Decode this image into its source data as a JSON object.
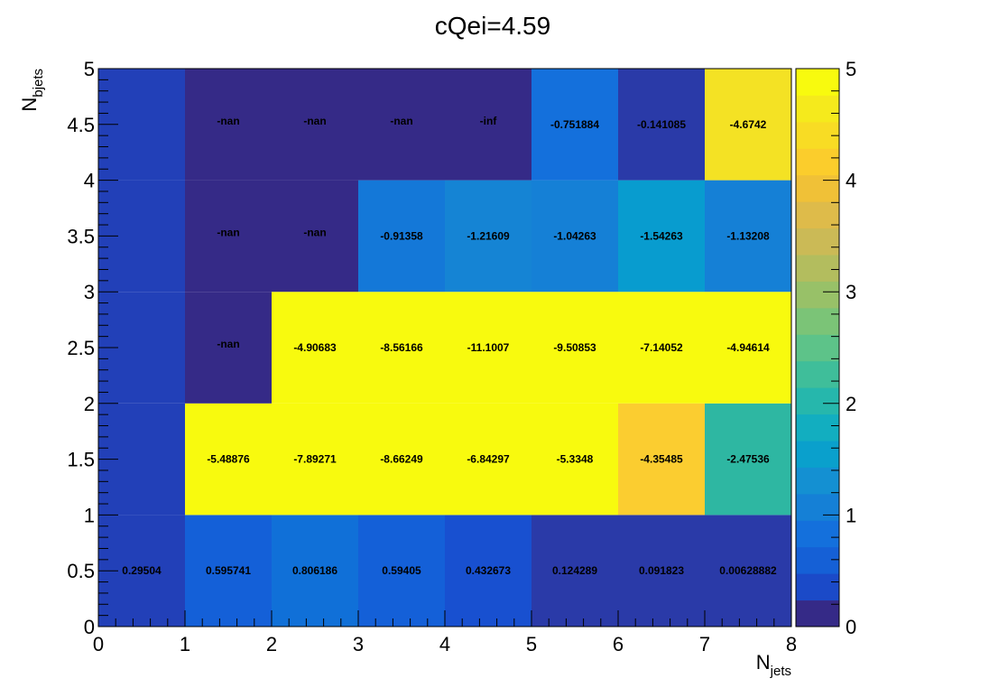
{
  "chart_data": {
    "type": "heatmap",
    "title": "cQei=4.59",
    "xlabel": {
      "main": "N",
      "sub": "jets"
    },
    "ylabel": {
      "main": "N",
      "sub": "bjets"
    },
    "xlim": [
      0,
      8
    ],
    "ylim": [
      0,
      5
    ],
    "x_ticks": [
      "0",
      "1",
      "2",
      "3",
      "4",
      "5",
      "6",
      "7",
      "8"
    ],
    "y_ticks": [
      "0",
      "0.5",
      "1",
      "1.5",
      "2",
      "2.5",
      "3",
      "3.5",
      "4",
      "4.5",
      "5"
    ],
    "x_bins": [
      [
        0,
        1
      ],
      [
        1,
        2
      ],
      [
        2,
        3
      ],
      [
        3,
        4
      ],
      [
        4,
        5
      ],
      [
        5,
        6
      ],
      [
        6,
        7
      ],
      [
        7,
        8
      ]
    ],
    "y_bins": [
      [
        0,
        1
      ],
      [
        1,
        2
      ],
      [
        2,
        3
      ],
      [
        3,
        4
      ],
      [
        4,
        5
      ]
    ],
    "color_scale": {
      "min": 0,
      "max": 5,
      "ticks": [
        "0",
        "1",
        "2",
        "3",
        "4",
        "5"
      ],
      "palette": "viridis-like"
    },
    "cells": [
      {
        "x": 0,
        "y": 0,
        "label": "0.29504",
        "value": 0.29504,
        "color": "#2240b8"
      },
      {
        "x": 1,
        "y": 0,
        "label": "0.595741",
        "value": 0.595741,
        "color": "#1460d8"
      },
      {
        "x": 2,
        "y": 0,
        "label": "0.806186",
        "value": 0.806186,
        "color": "#1070d8"
      },
      {
        "x": 3,
        "y": 0,
        "label": "0.59405",
        "value": 0.59405,
        "color": "#1460d8"
      },
      {
        "x": 4,
        "y": 0,
        "label": "0.432673",
        "value": 0.432673,
        "color": "#1850d0"
      },
      {
        "x": 5,
        "y": 0,
        "label": "0.124289",
        "value": 0.124289,
        "color": "#2a3aa8"
      },
      {
        "x": 6,
        "y": 0,
        "label": "0.091823",
        "value": 0.091823,
        "color": "#2a3aa8"
      },
      {
        "x": 7,
        "y": 0,
        "label": "0.00628882",
        "value": 0.00628882,
        "color": "#2a3aa8"
      },
      {
        "x": 0,
        "y": 1,
        "label": "",
        "value": 0.2,
        "color": "#2240b8"
      },
      {
        "x": 1,
        "y": 1,
        "label": "-5.48876",
        "value": -5.48876,
        "color": "#f8fa0e"
      },
      {
        "x": 2,
        "y": 1,
        "label": "-7.89271",
        "value": -7.89271,
        "color": "#f8fa0e"
      },
      {
        "x": 3,
        "y": 1,
        "label": "-8.66249",
        "value": -8.66249,
        "color": "#f8fa0e"
      },
      {
        "x": 4,
        "y": 1,
        "label": "-6.84297",
        "value": -6.84297,
        "color": "#f8fa0e"
      },
      {
        "x": 5,
        "y": 1,
        "label": "-5.3348",
        "value": -5.3348,
        "color": "#f8fa0e"
      },
      {
        "x": 6,
        "y": 1,
        "label": "-4.35485",
        "value": -4.35485,
        "color": "#fbcd30"
      },
      {
        "x": 7,
        "y": 1,
        "label": "-2.47536",
        "value": -2.47536,
        "color": "#2eb7a2"
      },
      {
        "x": 0,
        "y": 2,
        "label": "",
        "value": 0.2,
        "color": "#2240b8"
      },
      {
        "x": 1,
        "y": 2,
        "label": "-nan",
        "value": null,
        "color": "#352a87"
      },
      {
        "x": 2,
        "y": 2,
        "label": "-4.90683",
        "value": -4.90683,
        "color": "#f8fa0e"
      },
      {
        "x": 3,
        "y": 2,
        "label": "-8.56166",
        "value": -8.56166,
        "color": "#f8fa0e"
      },
      {
        "x": 4,
        "y": 2,
        "label": "-11.1007",
        "value": -11.1007,
        "color": "#f8fa0e"
      },
      {
        "x": 5,
        "y": 2,
        "label": "-9.50853",
        "value": -9.50853,
        "color": "#f8fa0e"
      },
      {
        "x": 6,
        "y": 2,
        "label": "-7.14052",
        "value": -7.14052,
        "color": "#f8fa0e"
      },
      {
        "x": 7,
        "y": 2,
        "label": "-4.94614",
        "value": -4.94614,
        "color": "#f8fa0e"
      },
      {
        "x": 0,
        "y": 3,
        "label": "",
        "value": 0.2,
        "color": "#2240b8"
      },
      {
        "x": 1,
        "y": 3,
        "label": "-nan",
        "value": null,
        "color": "#352a87"
      },
      {
        "x": 2,
        "y": 3,
        "label": "-nan",
        "value": null,
        "color": "#352a87"
      },
      {
        "x": 3,
        "y": 3,
        "label": "-0.91358",
        "value": -0.91358,
        "color": "#1478d8"
      },
      {
        "x": 4,
        "y": 3,
        "label": "-1.21609",
        "value": -1.21609,
        "color": "#1584d4"
      },
      {
        "x": 5,
        "y": 3,
        "label": "-1.04263",
        "value": -1.04263,
        "color": "#1580d6"
      },
      {
        "x": 6,
        "y": 3,
        "label": "-1.54263",
        "value": -1.54263,
        "color": "#089ccf"
      },
      {
        "x": 7,
        "y": 3,
        "label": "-1.13208",
        "value": -1.13208,
        "color": "#1580d6"
      },
      {
        "x": 0,
        "y": 4,
        "label": "",
        "value": 0.2,
        "color": "#2240b8"
      },
      {
        "x": 1,
        "y": 4,
        "label": "-nan",
        "value": null,
        "color": "#352a87"
      },
      {
        "x": 2,
        "y": 4,
        "label": "-nan",
        "value": null,
        "color": "#352a87"
      },
      {
        "x": 3,
        "y": 4,
        "label": "-nan",
        "value": null,
        "color": "#352a87"
      },
      {
        "x": 4,
        "y": 4,
        "label": "-inf",
        "value": null,
        "color": "#352a87"
      },
      {
        "x": 5,
        "y": 4,
        "label": "-0.751884",
        "value": -0.751884,
        "color": "#1470dc"
      },
      {
        "x": 6,
        "y": 4,
        "label": "-0.141085",
        "value": -0.141085,
        "color": "#2a3aa8"
      },
      {
        "x": 7,
        "y": 4,
        "label": "-4.6742",
        "value": -4.6742,
        "color": "#f4e224"
      }
    ]
  }
}
